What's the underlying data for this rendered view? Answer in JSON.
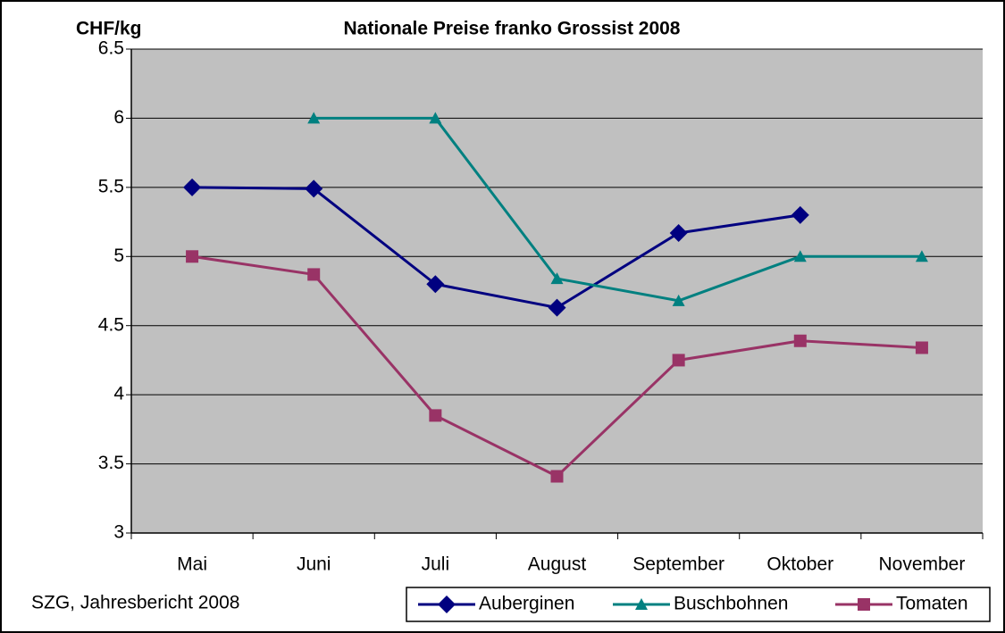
{
  "chart_data": {
    "type": "line",
    "title": "Nationale Preise franko Grossist 2008",
    "y_label": "CHF/kg",
    "source": "SZG, Jahresbericht 2008",
    "categories": [
      "Mai",
      "Juni",
      "Juli",
      "August",
      "September",
      "Oktober",
      "November"
    ],
    "series": [
      {
        "name": "Auberginen",
        "color": "#000080",
        "marker": "diamond",
        "values": [
          5.5,
          5.49,
          4.8,
          4.63,
          5.17,
          5.3,
          null
        ]
      },
      {
        "name": "Buschbohnen",
        "color": "#008080",
        "marker": "triangle",
        "values": [
          null,
          6.0,
          6.0,
          4.84,
          4.68,
          5.0,
          5.0
        ]
      },
      {
        "name": "Tomaten",
        "color": "#993366",
        "marker": "square",
        "values": [
          5.0,
          4.87,
          3.85,
          3.41,
          4.25,
          4.39,
          4.34
        ]
      }
    ],
    "ylim": [
      3,
      6.5
    ],
    "yticks": [
      3,
      3.5,
      4,
      4.5,
      5,
      5.5,
      6,
      6.5
    ],
    "grid": true,
    "legend": "bottom"
  }
}
